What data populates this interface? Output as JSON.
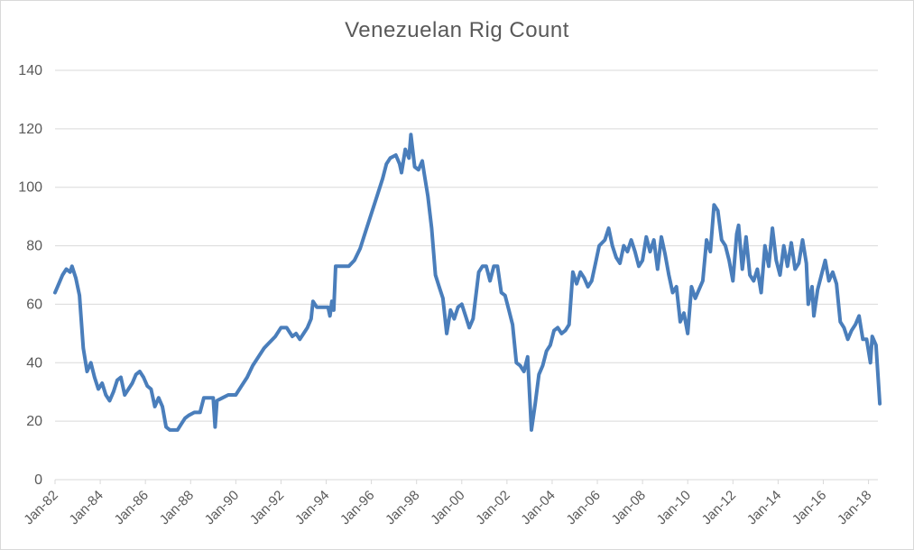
{
  "chart_data": {
    "type": "line",
    "title": "Venezuelan Rig Count",
    "xlabel": "",
    "ylabel": "",
    "ylim": [
      0,
      140
    ],
    "yticks": [
      0,
      20,
      40,
      60,
      80,
      100,
      120,
      140
    ],
    "xlim": [
      "1982-01",
      "2018-06"
    ],
    "xticks": [
      "Jan-82",
      "Jan-84",
      "Jan-86",
      "Jan-88",
      "Jan-90",
      "Jan-92",
      "Jan-94",
      "Jan-96",
      "Jan-98",
      "Jan-00",
      "Jan-02",
      "Jan-04",
      "Jan-06",
      "Jan-08",
      "Jan-10",
      "Jan-12",
      "Jan-14",
      "Jan-16",
      "Jan-18"
    ],
    "grid": true,
    "legend": "none",
    "series": [
      {
        "color": "#4a7ebb",
        "points": [
          [
            "1982-01",
            64
          ],
          [
            "1982-03",
            67
          ],
          [
            "1982-05",
            70
          ],
          [
            "1982-07",
            72
          ],
          [
            "1982-09",
            71
          ],
          [
            "1982-10",
            73
          ],
          [
            "1982-12",
            69
          ],
          [
            "1983-02",
            63
          ],
          [
            "1983-04",
            45
          ],
          [
            "1983-06",
            37
          ],
          [
            "1983-08",
            40
          ],
          [
            "1983-10",
            35
          ],
          [
            "1983-12",
            31
          ],
          [
            "1984-02",
            33
          ],
          [
            "1984-04",
            29
          ],
          [
            "1984-06",
            27
          ],
          [
            "1984-08",
            30
          ],
          [
            "1984-10",
            34
          ],
          [
            "1984-12",
            35
          ],
          [
            "1985-02",
            29
          ],
          [
            "1985-04",
            31
          ],
          [
            "1985-06",
            33
          ],
          [
            "1985-08",
            36
          ],
          [
            "1985-10",
            37
          ],
          [
            "1985-12",
            35
          ],
          [
            "1986-02",
            32
          ],
          [
            "1986-04",
            31
          ],
          [
            "1986-06",
            25
          ],
          [
            "1986-08",
            28
          ],
          [
            "1986-10",
            25
          ],
          [
            "1986-12",
            18
          ],
          [
            "1987-02",
            17
          ],
          [
            "1987-04",
            17
          ],
          [
            "1987-06",
            17
          ],
          [
            "1987-08",
            19
          ],
          [
            "1987-10",
            21
          ],
          [
            "1987-12",
            22
          ],
          [
            "1988-03",
            23
          ],
          [
            "1988-06",
            23
          ],
          [
            "1988-08",
            28
          ],
          [
            "1988-10",
            28
          ],
          [
            "1989-01",
            28
          ],
          [
            "1989-02",
            18
          ],
          [
            "1989-03",
            27
          ],
          [
            "1989-06",
            28
          ],
          [
            "1989-09",
            29
          ],
          [
            "1990-01",
            29
          ],
          [
            "1990-04",
            32
          ],
          [
            "1990-07",
            35
          ],
          [
            "1990-10",
            39
          ],
          [
            "1991-01",
            42
          ],
          [
            "1991-04",
            45
          ],
          [
            "1991-07",
            47
          ],
          [
            "1991-10",
            49
          ],
          [
            "1992-01",
            52
          ],
          [
            "1992-04",
            52
          ],
          [
            "1992-07",
            49
          ],
          [
            "1992-09",
            50
          ],
          [
            "1992-11",
            48
          ],
          [
            "1993-01",
            50
          ],
          [
            "1993-03",
            52
          ],
          [
            "1993-05",
            55
          ],
          [
            "1993-06",
            61
          ],
          [
            "1993-08",
            59
          ],
          [
            "1993-11",
            59
          ],
          [
            "1994-02",
            59
          ],
          [
            "1994-03",
            56
          ],
          [
            "1994-04",
            61
          ],
          [
            "1994-05",
            58
          ],
          [
            "1994-06",
            73
          ],
          [
            "1994-09",
            73
          ],
          [
            "1995-01",
            73
          ],
          [
            "1995-04",
            75
          ],
          [
            "1995-07",
            79
          ],
          [
            "1995-10",
            85
          ],
          [
            "1996-01",
            91
          ],
          [
            "1996-04",
            97
          ],
          [
            "1996-07",
            103
          ],
          [
            "1996-09",
            108
          ],
          [
            "1996-11",
            110
          ],
          [
            "1997-02",
            111
          ],
          [
            "1997-04",
            108
          ],
          [
            "1997-05",
            105
          ],
          [
            "1997-07",
            113
          ],
          [
            "1997-09",
            110
          ],
          [
            "1997-10",
            118
          ],
          [
            "1997-12",
            107
          ],
          [
            "1998-02",
            106
          ],
          [
            "1998-04",
            109
          ],
          [
            "1998-05",
            105
          ],
          [
            "1998-07",
            97
          ],
          [
            "1998-09",
            86
          ],
          [
            "1998-11",
            70
          ],
          [
            "1999-01",
            66
          ],
          [
            "1999-03",
            62
          ],
          [
            "1999-05",
            50
          ],
          [
            "1999-07",
            58
          ],
          [
            "1999-09",
            55
          ],
          [
            "1999-11",
            59
          ],
          [
            "2000-01",
            60
          ],
          [
            "2000-03",
            56
          ],
          [
            "2000-05",
            52
          ],
          [
            "2000-07",
            55
          ],
          [
            "2000-10",
            71
          ],
          [
            "2000-12",
            73
          ],
          [
            "2001-02",
            73
          ],
          [
            "2001-04",
            68
          ],
          [
            "2001-06",
            73
          ],
          [
            "2001-08",
            73
          ],
          [
            "2001-10",
            64
          ],
          [
            "2001-12",
            63
          ],
          [
            "2002-02",
            58
          ],
          [
            "2002-04",
            53
          ],
          [
            "2002-06",
            40
          ],
          [
            "2002-08",
            39
          ],
          [
            "2002-10",
            37
          ],
          [
            "2002-12",
            42
          ],
          [
            "2003-02",
            17
          ],
          [
            "2003-04",
            26
          ],
          [
            "2003-06",
            36
          ],
          [
            "2003-08",
            39
          ],
          [
            "2003-10",
            44
          ],
          [
            "2003-12",
            46
          ],
          [
            "2004-02",
            51
          ],
          [
            "2004-04",
            52
          ],
          [
            "2004-06",
            50
          ],
          [
            "2004-08",
            51
          ],
          [
            "2004-10",
            53
          ],
          [
            "2004-12",
            71
          ],
          [
            "2005-02",
            67
          ],
          [
            "2005-04",
            71
          ],
          [
            "2005-06",
            69
          ],
          [
            "2005-08",
            66
          ],
          [
            "2005-10",
            68
          ],
          [
            "2005-12",
            74
          ],
          [
            "2006-02",
            80
          ],
          [
            "2006-05",
            82
          ],
          [
            "2006-07",
            86
          ],
          [
            "2006-09",
            80
          ],
          [
            "2006-11",
            76
          ],
          [
            "2007-01",
            74
          ],
          [
            "2007-03",
            80
          ],
          [
            "2007-05",
            78
          ],
          [
            "2007-07",
            82
          ],
          [
            "2007-09",
            78
          ],
          [
            "2007-11",
            73
          ],
          [
            "2008-01",
            75
          ],
          [
            "2008-03",
            83
          ],
          [
            "2008-05",
            78
          ],
          [
            "2008-07",
            82
          ],
          [
            "2008-09",
            72
          ],
          [
            "2008-11",
            83
          ],
          [
            "2009-01",
            77
          ],
          [
            "2009-03",
            70
          ],
          [
            "2009-05",
            64
          ],
          [
            "2009-07",
            66
          ],
          [
            "2009-09",
            54
          ],
          [
            "2009-11",
            57
          ],
          [
            "2010-01",
            50
          ],
          [
            "2010-03",
            66
          ],
          [
            "2010-05",
            62
          ],
          [
            "2010-07",
            65
          ],
          [
            "2010-09",
            68
          ],
          [
            "2010-11",
            82
          ],
          [
            "2011-01",
            78
          ],
          [
            "2011-03",
            94
          ],
          [
            "2011-05",
            92
          ],
          [
            "2011-07",
            82
          ],
          [
            "2011-09",
            80
          ],
          [
            "2011-11",
            75
          ],
          [
            "2012-01",
            68
          ],
          [
            "2012-03",
            84
          ],
          [
            "2012-04",
            87
          ],
          [
            "2012-06",
            72
          ],
          [
            "2012-08",
            83
          ],
          [
            "2012-10",
            70
          ],
          [
            "2012-12",
            68
          ],
          [
            "2013-02",
            72
          ],
          [
            "2013-04",
            64
          ],
          [
            "2013-06",
            80
          ],
          [
            "2013-08",
            73
          ],
          [
            "2013-10",
            86
          ],
          [
            "2013-12",
            75
          ],
          [
            "2014-02",
            70
          ],
          [
            "2014-04",
            80
          ],
          [
            "2014-06",
            73
          ],
          [
            "2014-08",
            81
          ],
          [
            "2014-10",
            72
          ],
          [
            "2014-12",
            74
          ],
          [
            "2015-02",
            82
          ],
          [
            "2015-04",
            74
          ],
          [
            "2015-05",
            60
          ],
          [
            "2015-07",
            66
          ],
          [
            "2015-08",
            56
          ],
          [
            "2015-10",
            65
          ],
          [
            "2015-12",
            70
          ],
          [
            "2016-02",
            75
          ],
          [
            "2016-04",
            68
          ],
          [
            "2016-06",
            71
          ],
          [
            "2016-08",
            67
          ],
          [
            "2016-10",
            54
          ],
          [
            "2016-12",
            52
          ],
          [
            "2017-02",
            48
          ],
          [
            "2017-04",
            51
          ],
          [
            "2017-06",
            53
          ],
          [
            "2017-08",
            56
          ],
          [
            "2017-10",
            48
          ],
          [
            "2017-12",
            48
          ],
          [
            "2018-02",
            40
          ],
          [
            "2018-03",
            49
          ],
          [
            "2018-05",
            46
          ],
          [
            "2018-06",
            36
          ],
          [
            "2018-07",
            26
          ]
        ]
      }
    ]
  }
}
